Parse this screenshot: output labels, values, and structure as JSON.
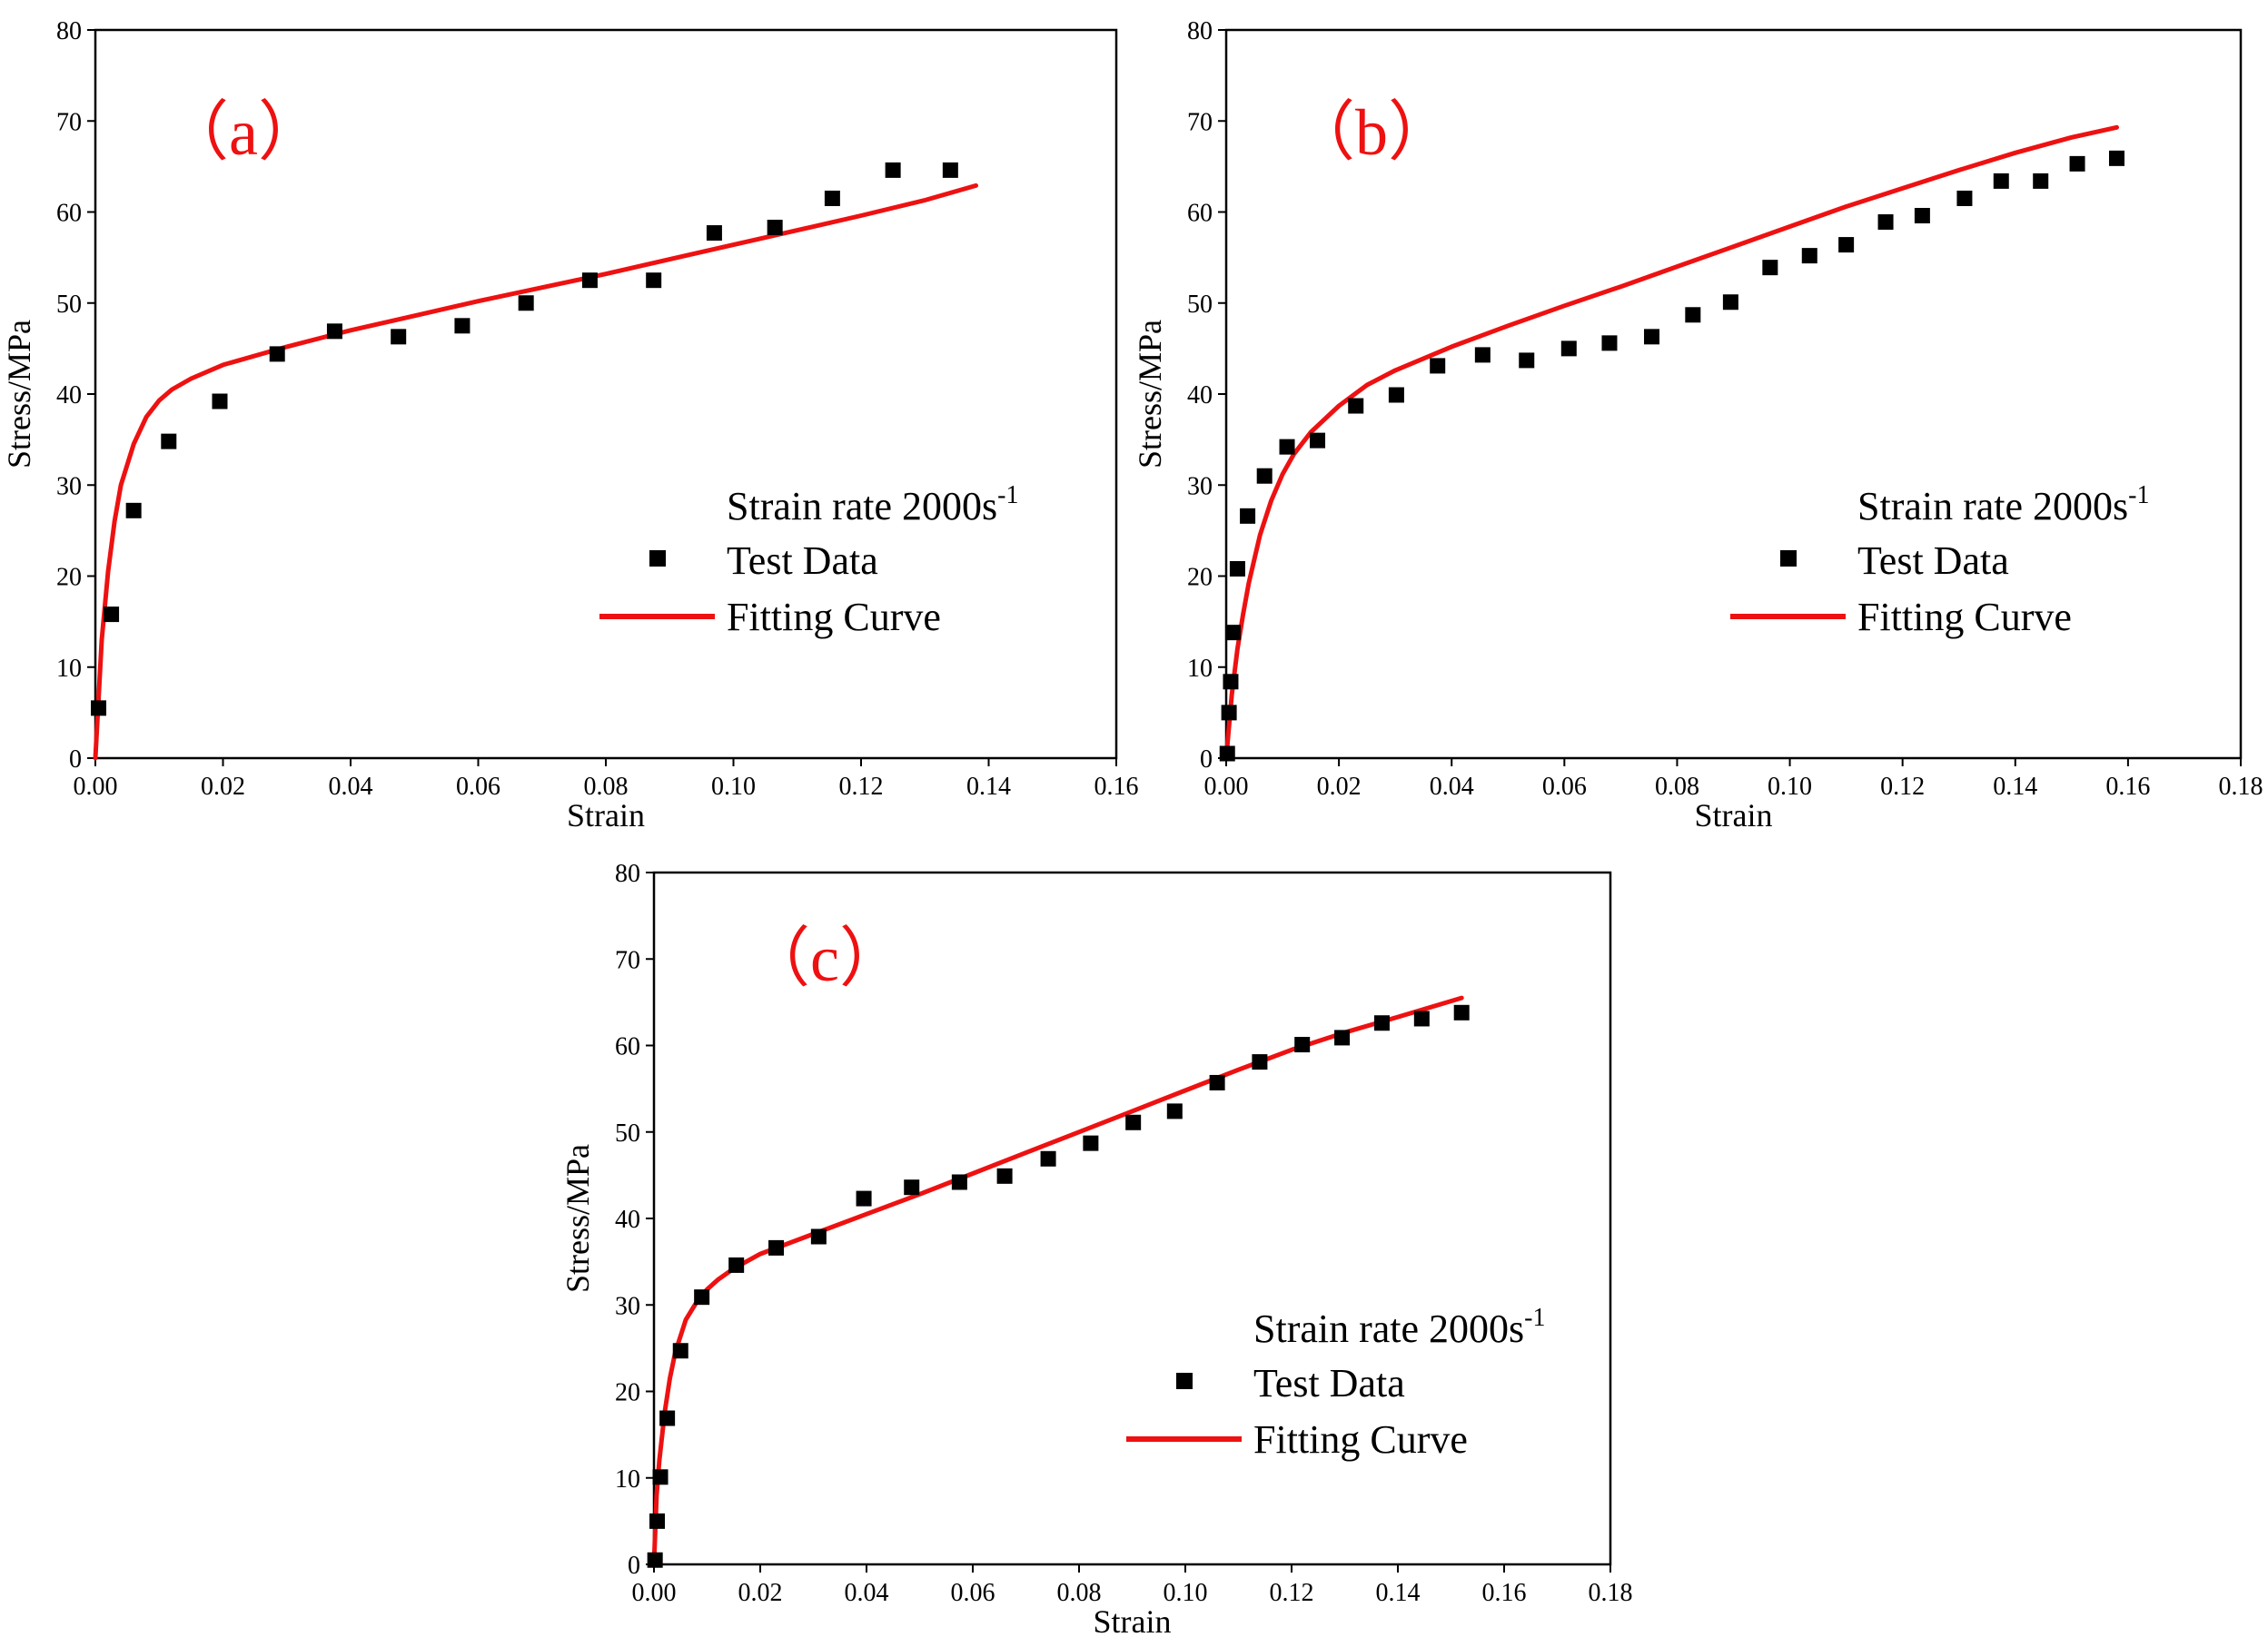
{
  "chart_data": [
    {
      "type": "scatter",
      "panel_label": "（a）",
      "xlabel": "Strain",
      "ylabel": "Stress/MPa",
      "xlim": [
        0,
        0.16
      ],
      "ylim": [
        0,
        80
      ],
      "xticks": [
        0.0,
        0.02,
        0.04,
        0.06,
        0.08,
        0.1,
        0.12,
        0.14,
        0.16
      ],
      "xtick_labels": [
        "0.00",
        "0.02",
        "0.04",
        "0.06",
        "0.08",
        "0.10",
        "0.12",
        "0.14",
        "0.16"
      ],
      "yticks": [
        0,
        10,
        20,
        30,
        40,
        50,
        60,
        70,
        80
      ],
      "ytick_labels": [
        "0",
        "10",
        "20",
        "30",
        "40",
        "50",
        "60",
        "70",
        "80"
      ],
      "legend": {
        "title_main": "Strain rate 2000s",
        "title_sup": "-1",
        "data_label": "Test Data",
        "fit_label": "Fitting Curve",
        "placement": "lower-right"
      },
      "series": [
        {
          "name": "Test Data",
          "x": [
            0.0005,
            0.0025,
            0.006,
            0.0115,
            0.0195,
            0.0285,
            0.0375,
            0.0475,
            0.0575,
            0.0675,
            0.0775,
            0.0875,
            0.097,
            0.1065,
            0.1155,
            0.125,
            0.134
          ],
          "y": [
            5.5,
            15.8,
            27.2,
            34.8,
            39.2,
            44.4,
            46.9,
            46.3,
            47.5,
            50.0,
            52.5,
            52.5,
            57.7,
            58.3,
            61.5,
            64.6,
            64.6
          ]
        },
        {
          "name": "Fitting Curve",
          "x": [
            0.0,
            0.001,
            0.002,
            0.003,
            0.004,
            0.006,
            0.008,
            0.01,
            0.012,
            0.015,
            0.02,
            0.03,
            0.04,
            0.05,
            0.06,
            0.07,
            0.08,
            0.09,
            0.1,
            0.11,
            0.12,
            0.13,
            0.138
          ],
          "y": [
            0.0,
            13.0,
            20.5,
            26.0,
            30.0,
            34.5,
            37.5,
            39.3,
            40.5,
            41.7,
            43.2,
            45.2,
            47.0,
            48.6,
            50.2,
            51.7,
            53.2,
            54.8,
            56.4,
            58.0,
            59.6,
            61.3,
            62.9
          ]
        }
      ]
    },
    {
      "type": "scatter",
      "panel_label": "（b）",
      "xlabel": "Strain",
      "ylabel": "Stress/MPa",
      "xlim": [
        0,
        0.18
      ],
      "ylim": [
        0,
        80
      ],
      "xticks": [
        0.0,
        0.02,
        0.04,
        0.06,
        0.08,
        0.1,
        0.12,
        0.14,
        0.16,
        0.18
      ],
      "xtick_labels": [
        "0.00",
        "0.02",
        "0.04",
        "0.06",
        "0.08",
        "0.10",
        "0.12",
        "0.14",
        "0.16",
        "0.18"
      ],
      "yticks": [
        0,
        10,
        20,
        30,
        40,
        50,
        60,
        70,
        80
      ],
      "ytick_labels": [
        "0",
        "10",
        "20",
        "30",
        "40",
        "50",
        "60",
        "70",
        "80"
      ],
      "legend": {
        "title_main": "Strain rate 2000s",
        "title_sup": "-1",
        "data_label": "Test Data",
        "fit_label": "Fitting Curve",
        "placement": "lower-right"
      },
      "series": [
        {
          "name": "Test Data",
          "x": [
            0.0002,
            0.0005,
            0.0008,
            0.0012,
            0.002,
            0.0038,
            0.0068,
            0.0108,
            0.0162,
            0.023,
            0.0302,
            0.0375,
            0.0455,
            0.0533,
            0.0608,
            0.068,
            0.0755,
            0.0828,
            0.0895,
            0.0965,
            0.1035,
            0.11,
            0.117,
            0.1235,
            0.131,
            0.1375,
            0.1445,
            0.151,
            0.158
          ],
          "y": [
            0.5,
            5.0,
            8.4,
            13.8,
            20.8,
            26.6,
            31.0,
            34.2,
            34.9,
            38.7,
            39.9,
            43.1,
            44.3,
            43.7,
            45.0,
            45.6,
            46.3,
            48.7,
            50.1,
            53.9,
            55.2,
            56.4,
            58.9,
            59.6,
            61.5,
            63.4,
            63.4,
            65.3,
            65.9
          ]
        },
        {
          "name": "Fitting Curve",
          "x": [
            0.0,
            0.001,
            0.002,
            0.003,
            0.004,
            0.006,
            0.008,
            0.01,
            0.012,
            0.015,
            0.02,
            0.025,
            0.03,
            0.04,
            0.05,
            0.06,
            0.07,
            0.08,
            0.09,
            0.1,
            0.11,
            0.12,
            0.13,
            0.14,
            0.15,
            0.158
          ],
          "y": [
            0.0,
            7.0,
            12.0,
            15.8,
            19.2,
            24.5,
            28.3,
            31.2,
            33.4,
            35.8,
            38.7,
            41.0,
            42.6,
            45.2,
            47.5,
            49.7,
            51.8,
            54.0,
            56.2,
            58.4,
            60.6,
            62.6,
            64.6,
            66.5,
            68.2,
            69.3
          ]
        }
      ]
    },
    {
      "type": "scatter",
      "panel_label": "（c）",
      "xlabel": "Strain",
      "ylabel": "Stress/MPa",
      "xlim": [
        0,
        0.18
      ],
      "ylim": [
        0,
        80
      ],
      "xticks": [
        0.0,
        0.02,
        0.04,
        0.06,
        0.08,
        0.1,
        0.12,
        0.14,
        0.16,
        0.18
      ],
      "xtick_labels": [
        "0.00",
        "0.02",
        "0.04",
        "0.06",
        "0.08",
        "0.10",
        "0.12",
        "0.14",
        "0.16",
        "0.18"
      ],
      "yticks": [
        0,
        10,
        20,
        30,
        40,
        50,
        60,
        70,
        80
      ],
      "ytick_labels": [
        "0",
        "10",
        "20",
        "30",
        "40",
        "50",
        "60",
        "70",
        "80"
      ],
      "legend": {
        "title_main": "Strain rate 2000s",
        "title_sup": "-1",
        "data_label": "Test Data",
        "fit_label": "Fitting Curve",
        "placement": "lower-right"
      },
      "series": [
        {
          "name": "Test Data",
          "x": [
            0.0002,
            0.0006,
            0.0012,
            0.0025,
            0.005,
            0.009,
            0.0155,
            0.023,
            0.031,
            0.0395,
            0.0485,
            0.0575,
            0.066,
            0.0742,
            0.0822,
            0.0902,
            0.098,
            0.106,
            0.114,
            0.122,
            0.1295,
            0.137,
            0.1445,
            0.152
          ],
          "y": [
            0.5,
            5.0,
            10.1,
            16.9,
            24.7,
            30.9,
            34.6,
            36.6,
            37.9,
            42.3,
            43.6,
            44.2,
            44.9,
            46.9,
            48.7,
            51.1,
            52.4,
            55.7,
            58.1,
            60.1,
            60.9,
            62.6,
            63.1,
            63.8
          ]
        },
        {
          "name": "Fitting Curve",
          "x": [
            0.0,
            0.0005,
            0.001,
            0.002,
            0.003,
            0.004,
            0.006,
            0.008,
            0.01,
            0.012,
            0.015,
            0.02,
            0.03,
            0.04,
            0.05,
            0.06,
            0.07,
            0.08,
            0.09,
            0.1,
            0.11,
            0.12,
            0.13,
            0.14,
            0.152
          ],
          "y": [
            0.0,
            8.0,
            12.0,
            17.5,
            21.5,
            24.5,
            28.3,
            30.3,
            31.8,
            32.9,
            34.2,
            35.9,
            38.2,
            40.5,
            42.8,
            45.2,
            47.6,
            50.0,
            52.4,
            54.8,
            57.2,
            59.5,
            61.5,
            63.3,
            65.5
          ]
        }
      ]
    }
  ],
  "colors": {
    "fit_line": "#ee1111",
    "marker": "#000000",
    "panel_label": "#ee1111",
    "axis": "#000000"
  }
}
